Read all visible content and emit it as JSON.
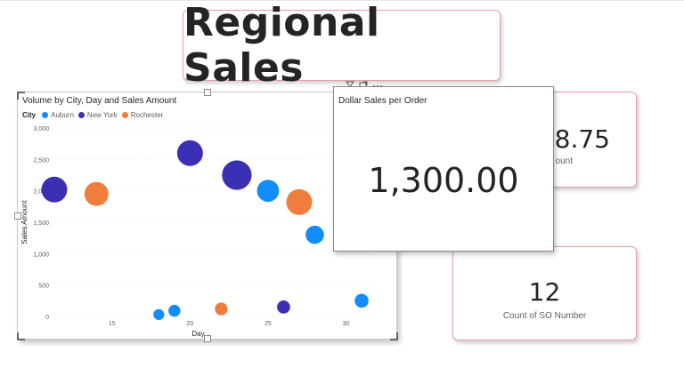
{
  "report": {
    "title": "Regional Sales"
  },
  "kpis": {
    "partial_value": "8.75",
    "partial_label": "ount",
    "dollar_sales_per_order": {
      "title": "Dollar Sales per Order",
      "value": "1,300.00"
    },
    "count_so": {
      "value": "12",
      "label": "Count of SO Number"
    }
  },
  "colors": {
    "auburn": "#118dff",
    "new_york": "#3a2fb5",
    "rochester": "#f07d3c",
    "card_border": "#e8a0a0"
  },
  "chart_data": {
    "type": "scatter",
    "title": "Volume by City, Day and Sales Amount",
    "xlabel": "Day",
    "ylabel": "Sales Amount",
    "xlim": [
      11.3,
      31.8
    ],
    "ylim": [
      0,
      3000
    ],
    "xticks": [
      15,
      20,
      25,
      30
    ],
    "yticks": [
      0,
      500,
      1000,
      1500,
      2000,
      2500,
      3000
    ],
    "ytick_labels": [
      "0",
      "500",
      "1,000",
      "1,500",
      "2,000",
      "2,500",
      "3,000"
    ],
    "legend_title": "City",
    "legend_position": "top-left",
    "series": [
      {
        "name": "Auburn",
        "color": "#118dff",
        "points": [
          {
            "x": 18,
            "y": 30,
            "volume": 1
          },
          {
            "x": 19,
            "y": 90,
            "volume": 1.3
          },
          {
            "x": 25,
            "y": 2000,
            "volume": 4
          },
          {
            "x": 28,
            "y": 1300,
            "volume": 3
          },
          {
            "x": 31,
            "y": 250,
            "volume": 1.8
          }
        ]
      },
      {
        "name": "New York",
        "color": "#3a2fb5",
        "points": [
          {
            "x": 11.3,
            "y": 2020,
            "volume": 5
          },
          {
            "x": 20,
            "y": 2600,
            "volume": 5
          },
          {
            "x": 23,
            "y": 2250,
            "volume": 6
          },
          {
            "x": 26,
            "y": 150,
            "volume": 1.6
          }
        ]
      },
      {
        "name": "Rochester",
        "color": "#f07d3c",
        "points": [
          {
            "x": 14,
            "y": 1950,
            "volume": 4.5
          },
          {
            "x": 22,
            "y": 120,
            "volume": 1.5
          },
          {
            "x": 27,
            "y": 1820,
            "volume": 5
          }
        ]
      }
    ]
  }
}
